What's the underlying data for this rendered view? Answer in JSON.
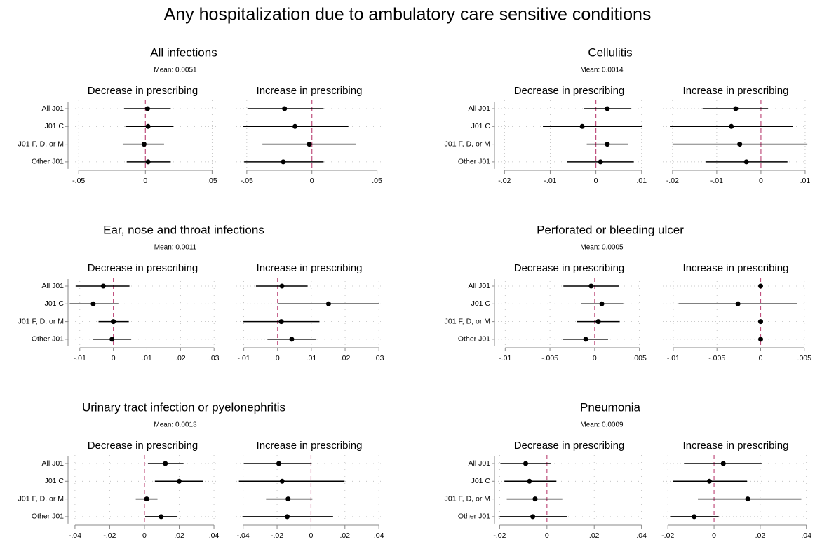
{
  "title": "Any hospitalization due to ambulatory care sensitive conditions",
  "chart_data": [
    {
      "type": "forest",
      "title": "All infections",
      "subtitle": "Mean: 0.0051",
      "color": "#000000",
      "grid": true,
      "categories": [
        "All J01",
        "J01 C",
        "J01 F, D, or M",
        "Other J01"
      ],
      "panels": [
        {
          "title": "Decrease in prescribing",
          "xlim": [
            -0.058,
            0.054
          ],
          "xticks": [
            {
              "value": -0.05,
              "label": "-.05"
            },
            0,
            {
              "value": 0.05,
              "label": ".05"
            }
          ],
          "values": [
            0.0016,
            0.002,
            -0.001,
            0.002
          ],
          "lower": [
            -0.016,
            -0.015,
            -0.017,
            -0.014
          ],
          "upper": [
            0.019,
            0.021,
            0.014,
            0.019
          ]
        },
        {
          "title": "Increase in prescribing",
          "xlim": [
            -0.058,
            0.054
          ],
          "xticks": [
            {
              "value": -0.05,
              "label": "-.05"
            },
            0,
            {
              "value": 0.05,
              "label": ".05"
            }
          ],
          "values": [
            -0.021,
            -0.013,
            -0.002,
            -0.022
          ],
          "lower": [
            -0.049,
            -0.053,
            -0.038,
            -0.052
          ],
          "upper": [
            0.009,
            0.028,
            0.034,
            0.009
          ]
        }
      ]
    },
    {
      "type": "forest",
      "title": "Cellulitis",
      "subtitle": "Mean: 0.0014",
      "color": "#000000",
      "grid": true,
      "categories": [
        "All J01",
        "J01 C",
        "J01 F, D, or M",
        "Other J01"
      ],
      "panels": [
        {
          "title": "Decrease in prescribing",
          "xlim": [
            -0.0222,
            0.0105
          ],
          "xticks": [
            {
              "value": -0.02,
              "label": "-.02"
            },
            {
              "value": -0.01,
              "label": "-.01"
            },
            0,
            {
              "value": 0.01,
              "label": ".01"
            }
          ],
          "values": [
            0.0025,
            -0.003,
            0.0025,
            0.001
          ],
          "lower": [
            -0.0027,
            -0.0116,
            -0.002,
            -0.0063
          ],
          "upper": [
            0.0077,
            0.0102,
            0.007,
            0.0083
          ]
        },
        {
          "title": "Increase in prescribing",
          "xlim": [
            -0.0222,
            0.0108
          ],
          "xticks": [
            {
              "value": -0.02,
              "label": "-.02"
            },
            {
              "value": -0.01,
              "label": "-.01"
            },
            0,
            {
              "value": 0.01,
              "label": ".01"
            }
          ],
          "values": [
            -0.0057,
            -0.0067,
            -0.0048,
            -0.0033
          ],
          "lower": [
            -0.0132,
            -0.0206,
            -0.02,
            -0.0125
          ],
          "upper": [
            0.0016,
            0.0073,
            0.0105,
            0.006
          ]
        }
      ]
    },
    {
      "type": "forest",
      "title": "Ear, nose and throat infections",
      "subtitle": "Mean: 0.0011",
      "color": "#000000",
      "grid": true,
      "categories": [
        "All J01",
        "J01 C",
        "J01 F, D, or M",
        "Other J01"
      ],
      "panels": [
        {
          "title": "Decrease in prescribing",
          "xlim": [
            -0.0135,
            0.031
          ],
          "xticks": [
            {
              "value": -0.01,
              "label": "-.01"
            },
            0,
            {
              "value": 0.01,
              "label": ".01"
            },
            {
              "value": 0.02,
              "label": ".02"
            },
            {
              "value": 0.03,
              "label": ".03"
            }
          ],
          "values": [
            -0.003,
            -0.006,
            0,
            -0.0004
          ],
          "lower": [
            -0.011,
            -0.013,
            -0.0044,
            -0.006
          ],
          "upper": [
            0.0048,
            0.0015,
            0.0046,
            0.0053
          ]
        },
        {
          "title": "Increase in prescribing",
          "xlim": [
            -0.0122,
            0.031
          ],
          "xticks": [
            {
              "value": -0.01,
              "label": "-.01"
            },
            0,
            {
              "value": 0.01,
              "label": ".01"
            },
            {
              "value": 0.02,
              "label": ".02"
            },
            {
              "value": 0.03,
              "label": ".03"
            }
          ],
          "values": [
            0.0013,
            0.0151,
            0.0011,
            0.0042
          ],
          "lower": [
            -0.0064,
            0,
            -0.0101,
            -0.003
          ],
          "upper": [
            0.0089,
            0.03,
            0.0124,
            0.0115
          ]
        }
      ]
    },
    {
      "type": "forest",
      "title": "Perforated or bleeding ulcer",
      "subtitle": "Mean: 0.0005",
      "color": "#000000",
      "grid": true,
      "categories": [
        "All J01",
        "J01 C",
        "J01 F, D, or M",
        "Other J01"
      ],
      "panels": [
        {
          "title": "Decrease in prescribing",
          "xlim": [
            -0.0112,
            0.0055
          ],
          "xticks": [
            {
              "value": -0.01,
              "label": "-.01"
            },
            {
              "value": -0.005,
              "label": "-.005"
            },
            0,
            {
              "value": 0.005,
              "label": ".005"
            }
          ],
          "values": [
            -0.0004,
            0.0008,
            0.0004,
            -0.001
          ],
          "lower": [
            -0.0035,
            -0.0015,
            -0.002,
            -0.0036
          ],
          "upper": [
            0.0027,
            0.0032,
            0.0028,
            0.0015
          ]
        },
        {
          "title": "Increase in prescribing",
          "xlim": [
            -0.0112,
            0.0055
          ],
          "xticks": [
            {
              "value": -0.01,
              "label": "-.01"
            },
            {
              "value": -0.005,
              "label": "-.005"
            },
            0,
            {
              "value": 0.005,
              "label": ".005"
            }
          ],
          "values": [
            0,
            -0.0026,
            0,
            0
          ],
          "lower": [
            0,
            -0.0094,
            0,
            0
          ],
          "upper": [
            0,
            0.0042,
            0,
            0
          ]
        }
      ]
    },
    {
      "type": "forest",
      "title": "Urinary tract infection or pyelonephritis",
      "subtitle": "Mean: 0.0013",
      "color": "#000000",
      "grid": true,
      "categories": [
        "All J01",
        "J01 C",
        "J01 F, D, or M",
        "Other J01"
      ],
      "panels": [
        {
          "title": "Decrease in prescribing",
          "xlim": [
            -0.044,
            0.042
          ],
          "xticks": [
            {
              "value": -0.04,
              "label": "-.04"
            },
            {
              "value": -0.02,
              "label": "-.02"
            },
            0,
            {
              "value": 0.02,
              "label": ".02"
            },
            {
              "value": 0.04,
              "label": ".04"
            }
          ],
          "values": [
            0.012,
            0.02,
            0.0013,
            0.0096
          ],
          "lower": [
            0.002,
            0.006,
            -0.005,
            0.0004
          ],
          "upper": [
            0.0225,
            0.0338,
            0.0075,
            0.019
          ]
        },
        {
          "title": "Increase in prescribing",
          "xlim": [
            -0.044,
            0.042
          ],
          "xticks": [
            {
              "value": -0.04,
              "label": "-.04"
            },
            {
              "value": -0.02,
              "label": "-.02"
            },
            0,
            {
              "value": 0.02,
              "label": ".02"
            },
            {
              "value": 0.04,
              "label": ".04"
            }
          ],
          "values": [
            -0.019,
            -0.017,
            -0.0135,
            -0.014
          ],
          "lower": [
            -0.0396,
            -0.0425,
            -0.0265,
            -0.0404
          ],
          "upper": [
            0.0004,
            0.0198,
            0.0008,
            0.013
          ]
        }
      ]
    },
    {
      "type": "forest",
      "title": "Pneumonia",
      "subtitle": "Mean: 0.0009",
      "color": "#000000",
      "grid": true,
      "categories": [
        "All J01",
        "J01 C",
        "J01 F, D, or M",
        "Other J01"
      ],
      "panels": [
        {
          "title": "Decrease in prescribing",
          "xlim": [
            -0.0222,
            0.041
          ],
          "xticks": [
            {
              "value": -0.02,
              "label": "-.02"
            },
            0,
            {
              "value": 0.02,
              "label": ".02"
            },
            {
              "value": 0.04,
              "label": ".04"
            }
          ],
          "values": [
            -0.009,
            -0.0074,
            -0.005,
            -0.006
          ],
          "lower": [
            -0.0197,
            -0.018,
            -0.017,
            -0.02
          ],
          "upper": [
            0.0017,
            0.004,
            0.0065,
            0.0086
          ]
        },
        {
          "title": "Increase in prescribing",
          "xlim": [
            -0.0222,
            0.041
          ],
          "xticks": [
            {
              "value": -0.02,
              "label": "-.02"
            },
            0,
            {
              "value": 0.02,
              "label": ".02"
            },
            {
              "value": 0.04,
              "label": ".04"
            }
          ],
          "values": [
            0.004,
            -0.002,
            0.0146,
            -0.0086
          ],
          "lower": [
            -0.013,
            -0.0178,
            -0.007,
            -0.019
          ],
          "upper": [
            0.0206,
            0.0143,
            0.0378,
            0.002
          ]
        }
      ]
    }
  ]
}
